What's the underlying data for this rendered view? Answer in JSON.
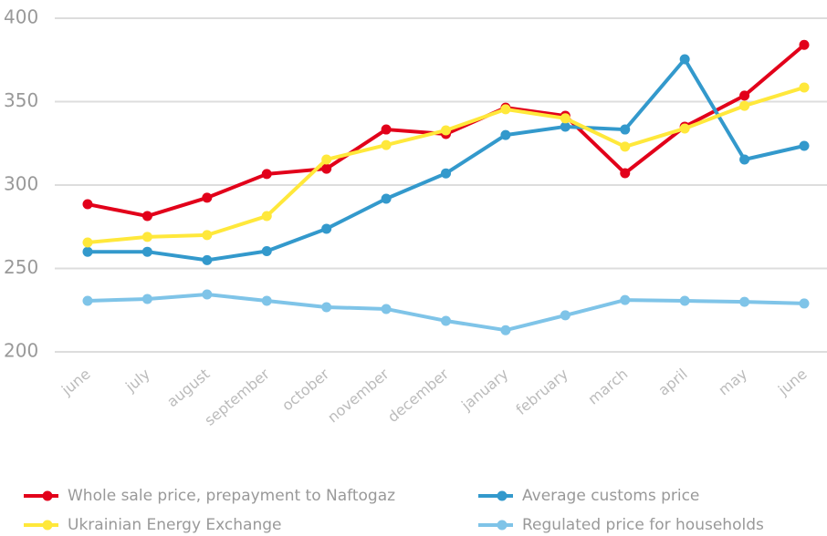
{
  "chart_data": {
    "type": "line",
    "categories": [
      "june",
      "july",
      "august",
      "september",
      "october",
      "november",
      "december",
      "january",
      "february",
      "march",
      "april",
      "may",
      "june"
    ],
    "series": [
      {
        "name": "Whole sale price, prepayment to Naftogaz",
        "color": "#e2001a",
        "values": [
          288.5,
          281.4,
          292.4,
          306.6,
          309.8,
          333.3,
          330.6,
          346.4,
          341.5,
          307.1,
          335,
          353.6,
          384
        ]
      },
      {
        "name": "Average customs price",
        "color": "#3399cc",
        "values": [
          260,
          260,
          255,
          260.4,
          273.8,
          291.8,
          307,
          330,
          335,
          333.3,
          375.4,
          315.3,
          323.5
        ]
      },
      {
        "name": "Ukrainian Energy Exchange",
        "color": "#ffe83b",
        "values": [
          265.6,
          268.9,
          270,
          281.4,
          315.3,
          324,
          332.8,
          345.4,
          340,
          323,
          333.9,
          347.5,
          358.5
        ]
      },
      {
        "name": "Regulated price for households",
        "color": "#7fc4e8",
        "values": [
          230.6,
          231.7,
          234.4,
          230.6,
          226.8,
          225.7,
          218.6,
          213,
          221.9,
          231.1,
          230.6,
          230,
          229
        ]
      }
    ],
    "ylim": [
      200,
      400
    ],
    "yticks": [
      200,
      250,
      300,
      350,
      400
    ],
    "grid": true
  }
}
